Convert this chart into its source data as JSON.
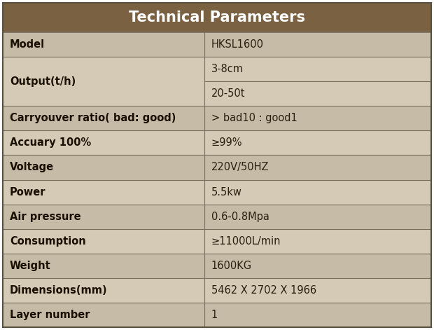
{
  "title": "Technical Parameters",
  "title_bg": "#7a6142",
  "title_color": "#ffffff",
  "header_fontsize": 15,
  "cell_fontsize": 10.5,
  "row_bg_dark": "#c5bba6",
  "row_bg_light": "#d4cab5",
  "border_color": "#7a6e5f",
  "text_color_label": "#1a1000",
  "text_color_value": "#2a2010",
  "col_split": 0.47,
  "outer_border_color": "#5a5040",
  "rows": [
    {
      "label": "Model",
      "value": "HKSL1600",
      "span": 1,
      "sub": []
    },
    {
      "label": "Output(t/h)",
      "value": "",
      "span": 2,
      "sub": [
        "3-8cm",
        "20-50t"
      ]
    },
    {
      "label": "Carryouver ratio( bad: good)",
      "value": "> bad10 : good1",
      "span": 1,
      "sub": []
    },
    {
      "label": "Accuary 100%",
      "value": "≥99%",
      "span": 1,
      "sub": []
    },
    {
      "label": "Voltage",
      "value": "220V/50HZ",
      "span": 1,
      "sub": []
    },
    {
      "label": "Power",
      "value": "5.5kw",
      "span": 1,
      "sub": []
    },
    {
      "label": "Air pressure",
      "value": "0.6-0.8Mpa",
      "span": 1,
      "sub": []
    },
    {
      "label": "Consumption",
      "value": "≥11000L/min",
      "span": 1,
      "sub": []
    },
    {
      "label": "Weight",
      "value": "1600KG",
      "span": 1,
      "sub": []
    },
    {
      "label": "Dimensions(mm)",
      "value": "5462 X 2702 X 1966",
      "span": 1,
      "sub": []
    },
    {
      "label": "Layer number",
      "value": "1",
      "span": 1,
      "sub": []
    }
  ]
}
